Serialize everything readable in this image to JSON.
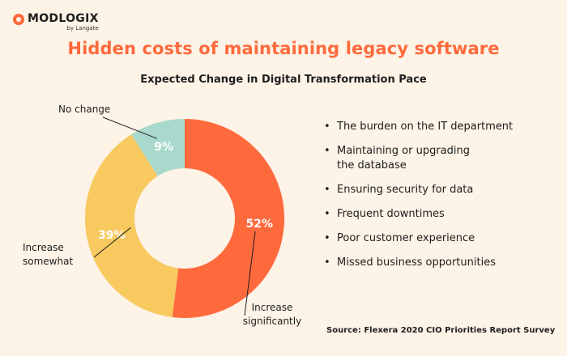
{
  "brand": {
    "name": "MODLOGIX",
    "tagline": "by Langate",
    "accent": "#ff6a3d"
  },
  "header": {
    "title": "Hidden costs of maintaining legacy software"
  },
  "chart_data": {
    "type": "pie",
    "style": "donut",
    "title": "Expected Change in Digital Transformation Pace",
    "categories": [
      "Increase significantly",
      "Increase somewhat",
      "No change"
    ],
    "values": [
      52,
      39,
      9
    ],
    "value_labels": [
      "52%",
      "39%",
      "9%"
    ],
    "colors": [
      "#ff6a3d",
      "#f7c95e",
      "#a9d9cc"
    ],
    "legend": "none"
  },
  "bullets": {
    "items": [
      "The burden on the IT department",
      "Maintaining or upgrading\nthe database",
      "Ensuring security for data",
      "Frequent downtimes",
      "Poor customer experience",
      "Missed business opportunities"
    ]
  },
  "footer": {
    "source": "Source: Flexera 2020 CIO Priorities Report Survey"
  }
}
